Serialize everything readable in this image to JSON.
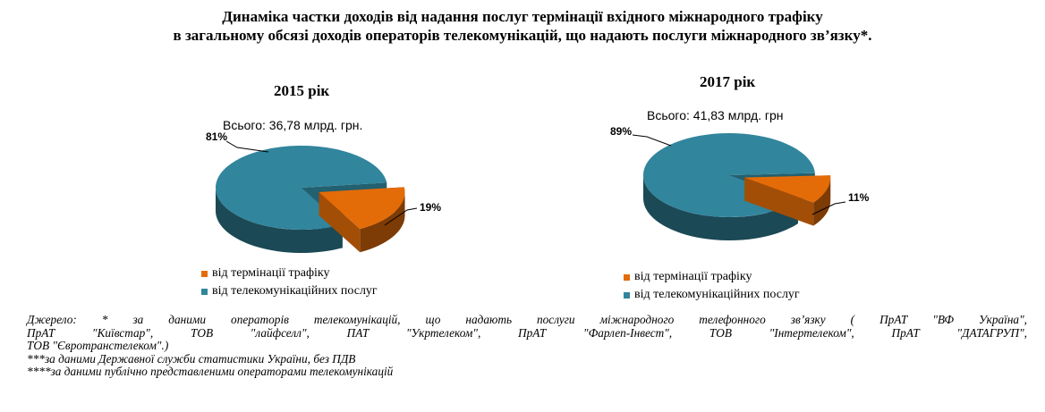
{
  "title": {
    "line1": "Динаміка частки доходів від надання послуг термінації вхідного міжнародного трафіку",
    "line2": "в загальному обсязі доходів операторів телекомунікацій, що надають послуги міжнародного зв’язку*."
  },
  "colors": {
    "telecom": "#31859c",
    "termination": "#e36c09"
  },
  "chart_data": [
    {
      "type": "pie",
      "title": "2015 рік",
      "subtitle": "Всього: 36,78 млрд. грн.",
      "categories": [
        "від телекомунікаційних послуг",
        "від термінації трафіку"
      ],
      "values": [
        81,
        19
      ],
      "data_labels": [
        "81%",
        "19%"
      ],
      "legend_position": "bottom"
    },
    {
      "type": "pie",
      "title": "2017 рік",
      "subtitle": "Всього: 41,83 млрд. грн",
      "categories": [
        "від телекомунікаційних послуг",
        "від термінації трафіку"
      ],
      "values": [
        89,
        11
      ],
      "data_labels": [
        "89%",
        "11%"
      ],
      "legend_position": "bottom"
    }
  ],
  "legend": {
    "termination": "від термінації трафіку",
    "telecom": "від телекомунікаційних послуг"
  },
  "source": {
    "line1": "Джерело: * за даними операторів телекомунікацій, що надають послуги міжнародного телефонного зв’язку ( ПрАТ \"ВФ Україна\",",
    "line2": "ПрАТ \"Київстар\", ТОВ \"лайфселл\", ПАТ \"Укртелеком\", ПрАТ \"Фарлеп-Інвест\", ТОВ \"Інтертелеком\", ПрАТ \"ДАТАГРУП\",",
    "line3": "ТОВ \"Євротранстелеком\".)",
    "line4": "***за даними Державної служби статистики України, без ПДВ",
    "line5": "****за даними публічно представленими операторами телекомунікацій"
  }
}
